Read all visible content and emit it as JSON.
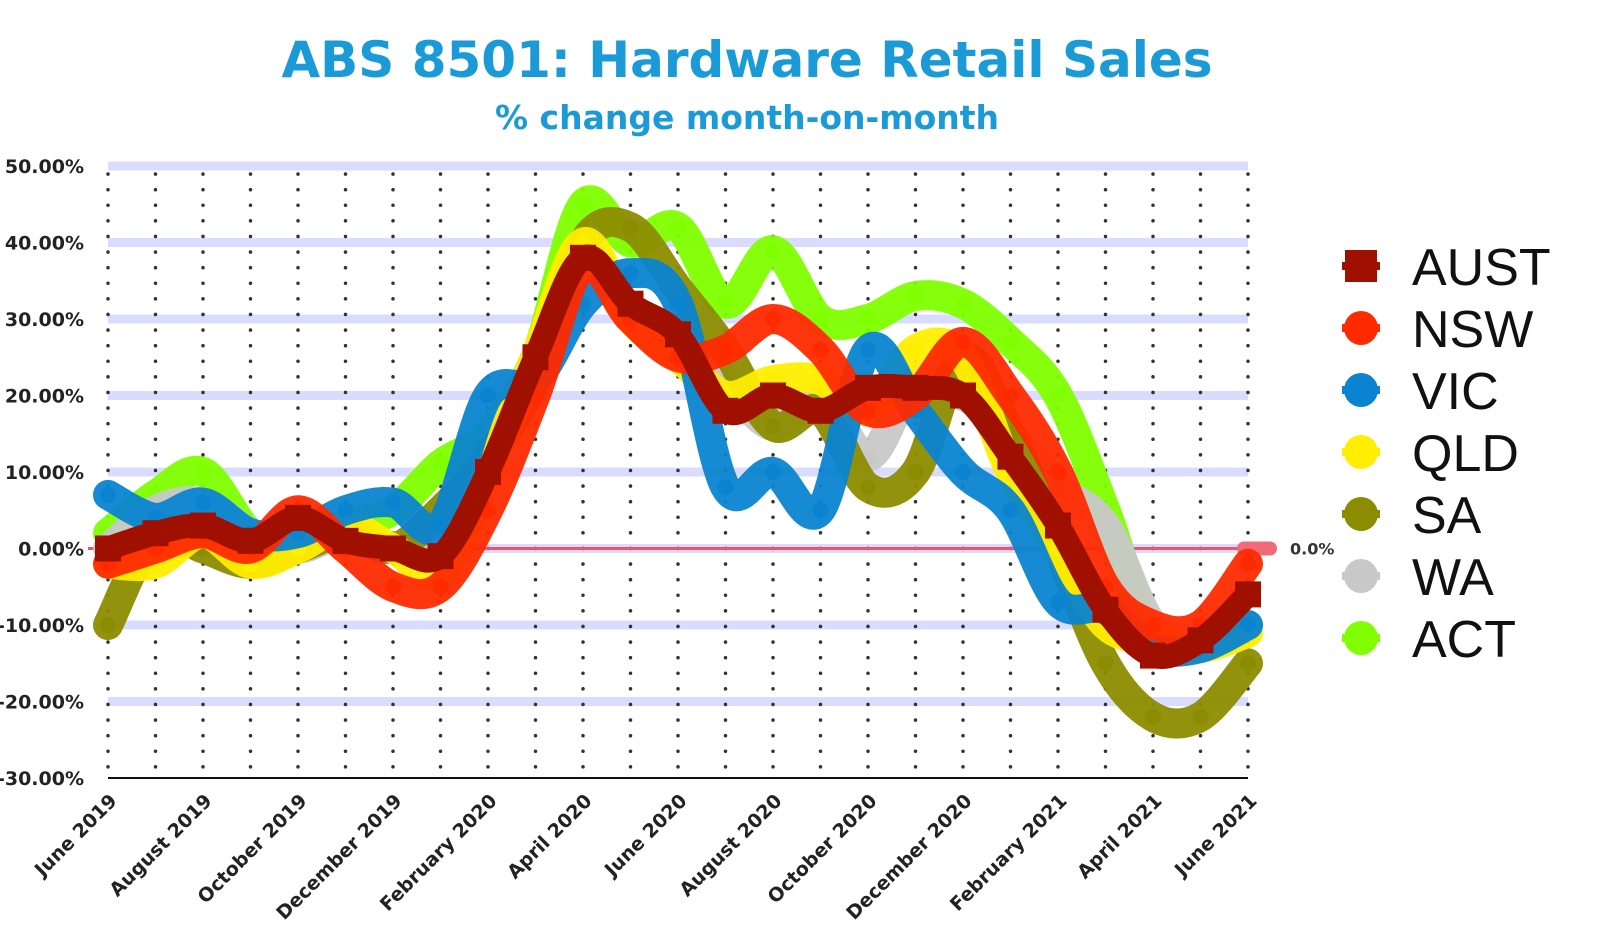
{
  "chart_data": {
    "type": "line",
    "title": "ABS 8501: Hardware Retail Sales",
    "subtitle": "% change month-on-month",
    "xlabel": "",
    "ylabel": "",
    "ylim": [
      -30,
      50
    ],
    "y_ticks": [
      "50.00%",
      "40.00%",
      "30.00%",
      "20.00%",
      "10.00%",
      "0.00%",
      "-10.00%",
      "-20.00%",
      "-30.00%"
    ],
    "y_tick_values": [
      50,
      40,
      30,
      20,
      10,
      0,
      -10,
      -20,
      -30
    ],
    "x": [
      "Jun 2019",
      "Jul 2019",
      "Aug 2019",
      "Sep 2019",
      "Oct 2019",
      "Nov 2019",
      "Dec 2019",
      "Jan 2020",
      "Feb 2020",
      "Mar 2020",
      "Apr 2020",
      "May 2020",
      "Jun 2020",
      "Jul 2020",
      "Aug 2020",
      "Sep 2020",
      "Oct 2020",
      "Nov 2020",
      "Dec 2020",
      "Jan 2021",
      "Feb 2021",
      "Mar 2021",
      "Apr 2021",
      "May 2021",
      "Jun 2021"
    ],
    "x_tick_labels": [
      "June 2019",
      "August 2019",
      "October 2019",
      "December 2019",
      "February 2020",
      "April 2020",
      "June 2020",
      "August 2020",
      "October 2020",
      "December 2020",
      "February 2021",
      "April 2021",
      "June 2021"
    ],
    "x_tick_indices": [
      0,
      2,
      4,
      6,
      8,
      10,
      12,
      14,
      16,
      18,
      20,
      22,
      24
    ],
    "grid": true,
    "legend_position": "right",
    "zero_line_label": "0.0%",
    "series": [
      {
        "name": "ACT",
        "color": "#7fff00",
        "marker": "circle",
        "values": [
          2,
          7,
          10,
          2,
          0,
          3,
          5,
          11,
          15,
          25,
          45,
          40,
          42,
          32,
          39,
          30,
          30,
          33,
          32,
          27,
          20,
          5,
          -12,
          -12,
          -10
        ]
      },
      {
        "name": "WA",
        "color": "#c8c8c8",
        "marker": "circle",
        "values": [
          0,
          5,
          6,
          2,
          0,
          2,
          0,
          2,
          12,
          25,
          38,
          30,
          28,
          22,
          16,
          20,
          12,
          22,
          20,
          15,
          8,
          3,
          -10,
          -12,
          -10
        ]
      },
      {
        "name": "SA",
        "color": "#8c8c00",
        "marker": "circle",
        "values": [
          -10,
          2,
          0,
          -2,
          0,
          2,
          0,
          5,
          12,
          22,
          40,
          42,
          34,
          26,
          16,
          18,
          8,
          10,
          25,
          15,
          0,
          -15,
          -22,
          -22,
          -15
        ]
      },
      {
        "name": "QLD",
        "color": "#ffee00",
        "marker": "circle",
        "values": [
          -2,
          -2,
          2,
          -2,
          0,
          3,
          0,
          -3,
          10,
          25,
          40,
          30,
          25,
          20,
          22,
          22,
          18,
          26,
          25,
          10,
          0,
          -10,
          -12,
          -13,
          -11
        ]
      },
      {
        "name": "VIC",
        "color": "#0a84d0",
        "marker": "circle",
        "values": [
          7,
          4,
          6,
          2,
          2,
          5,
          6,
          3,
          20,
          22,
          32,
          36,
          32,
          8,
          10,
          5,
          26,
          18,
          10,
          5,
          -7,
          -8,
          -13,
          -13,
          -10
        ]
      },
      {
        "name": "NSW",
        "color": "#ff2a00",
        "marker": "circle",
        "values": [
          -2,
          0,
          2,
          0,
          5,
          0,
          -5,
          -5,
          5,
          20,
          37,
          30,
          25,
          26,
          30,
          26,
          18,
          20,
          27,
          20,
          10,
          -5,
          -10,
          -10,
          -2
        ]
      },
      {
        "name": "AUST",
        "color": "#a01000",
        "marker": "square",
        "values": [
          0,
          2,
          3,
          1,
          4,
          1,
          0,
          -1,
          10,
          25,
          38,
          32,
          28,
          18,
          20,
          18,
          21,
          21,
          20,
          12,
          3,
          -8,
          -14,
          -12,
          -6
        ]
      }
    ]
  }
}
